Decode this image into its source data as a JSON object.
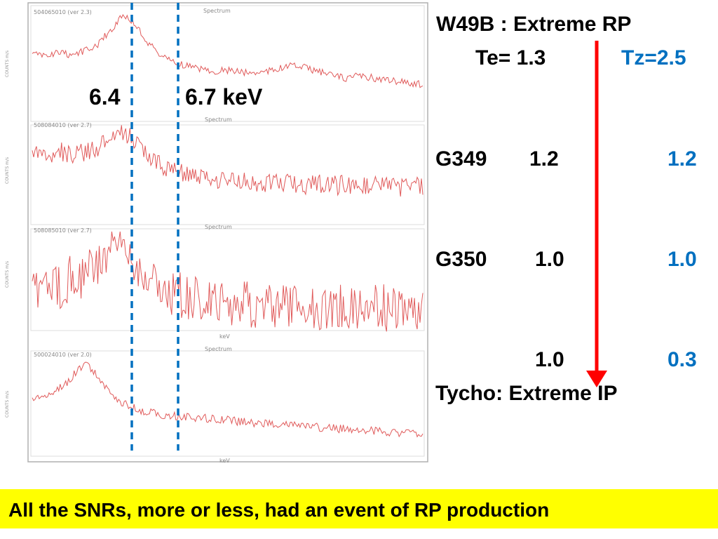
{
  "colors": {
    "spectrum": "#E05A5A",
    "marker_lines": "#0070C0",
    "arrow": "#FF0000",
    "tz_values": "#0070C0",
    "banner": "#FFFF00"
  },
  "chart_data": [
    {
      "type": "line",
      "panel_label": "504065010 (ver 2.3)",
      "title": "Spectrum",
      "xlabel": "keV",
      "ylabel": "COUNTS m/s",
      "series": [
        {
          "x": [
            6.0,
            6.1,
            6.2,
            6.3,
            6.4,
            6.5,
            6.6,
            6.7,
            6.8,
            6.9,
            7.0,
            7.1,
            7.2,
            7.3,
            7.4,
            7.5,
            7.6,
            7.7,
            7.8,
            7.9,
            8.0,
            8.1,
            8.2,
            8.3,
            8.4,
            8.5,
            8.6,
            8.7,
            8.8,
            8.9,
            9.0
          ],
          "y": [
            0.48,
            0.46,
            0.5,
            0.47,
            0.52,
            0.6,
            0.78,
            0.98,
            0.83,
            0.6,
            0.45,
            0.38,
            0.33,
            0.3,
            0.27,
            0.28,
            0.26,
            0.25,
            0.27,
            0.3,
            0.34,
            0.31,
            0.26,
            0.22,
            0.18,
            0.21,
            0.19,
            0.16,
            0.14,
            0.12,
            0.1
          ]
        }
      ]
    },
    {
      "type": "line",
      "panel_label": "508084010 (ver 2.7)",
      "title": "Spectrum",
      "xlabel": "keV",
      "ylabel": "COUNTS m/s",
      "series": [
        {
          "x": [
            6.0,
            6.1,
            6.2,
            6.3,
            6.4,
            6.5,
            6.6,
            6.7,
            6.8,
            6.9,
            7.0,
            7.1,
            7.2,
            7.3,
            7.4,
            7.5,
            7.6,
            7.7,
            7.8,
            7.9,
            8.0,
            8.1,
            8.2,
            8.3,
            8.4,
            8.5,
            8.6,
            8.7,
            8.8,
            8.9,
            9.0
          ],
          "y": [
            0.7,
            0.68,
            0.72,
            0.66,
            0.7,
            0.76,
            0.84,
            0.96,
            0.8,
            0.66,
            0.55,
            0.48,
            0.42,
            0.38,
            0.36,
            0.35,
            0.34,
            0.33,
            0.34,
            0.33,
            0.32,
            0.31,
            0.32,
            0.3,
            0.31,
            0.3,
            0.29,
            0.3,
            0.28,
            0.3,
            0.29
          ]
        }
      ]
    },
    {
      "type": "line",
      "panel_label": "508085010 (ver 2.7)",
      "title": "Spectrum",
      "xlabel": "keV",
      "ylabel": "COUNTS m/s",
      "series": [
        {
          "x": [
            6.0,
            6.1,
            6.2,
            6.3,
            6.4,
            6.5,
            6.6,
            6.7,
            6.8,
            6.9,
            7.0,
            7.1,
            7.2,
            7.3,
            7.4,
            7.5,
            7.6,
            7.7,
            7.8,
            7.9,
            8.0,
            8.1,
            8.2,
            8.3,
            8.4,
            8.5,
            8.6,
            8.7,
            8.8,
            8.9,
            9.0
          ],
          "y": [
            0.45,
            0.5,
            0.42,
            0.55,
            0.6,
            0.7,
            0.85,
            0.92,
            0.72,
            0.55,
            0.45,
            0.38,
            0.33,
            0.3,
            0.28,
            0.27,
            0.26,
            0.25,
            0.26,
            0.25,
            0.24,
            0.25,
            0.24,
            0.23,
            0.24,
            0.23,
            0.22,
            0.23,
            0.22,
            0.22,
            0.21
          ]
        }
      ]
    },
    {
      "type": "line",
      "panel_label": "500024010 (ver 2.0)",
      "title": "Spectrum",
      "xlabel": "keV",
      "ylabel": "COUNTS m/s",
      "series": [
        {
          "x": [
            6.0,
            6.1,
            6.2,
            6.3,
            6.4,
            6.5,
            6.6,
            6.7,
            6.8,
            6.9,
            7.0,
            7.1,
            7.2,
            7.3,
            7.4,
            7.5,
            7.6,
            7.7,
            7.8,
            7.9,
            8.0,
            8.1,
            8.2,
            8.3,
            8.4,
            8.5,
            8.6,
            8.7,
            8.8,
            8.9,
            9.0
          ],
          "y": [
            0.55,
            0.58,
            0.65,
            0.78,
            0.95,
            0.82,
            0.62,
            0.5,
            0.44,
            0.4,
            0.38,
            0.36,
            0.35,
            0.34,
            0.33,
            0.32,
            0.3,
            0.29,
            0.28,
            0.27,
            0.26,
            0.25,
            0.24,
            0.23,
            0.22,
            0.21,
            0.2,
            0.19,
            0.18,
            0.17,
            0.16
          ]
        }
      ]
    }
  ],
  "markers": {
    "fe_neutral_label": "6.4",
    "fe_he_label": "6.7 keV"
  },
  "right_panel": {
    "header": "W49B : Extreme RP",
    "te_label": "Te= 1.3",
    "tz_label": "Tz=2.5",
    "g349_name": "G349",
    "g349_te": "1.2",
    "g349_tz": "1.2",
    "g350_name": "G350",
    "g350_te": "1.0",
    "g350_tz": "1.0",
    "tycho_te": "1.0",
    "tycho_tz": "0.3",
    "tycho_label": "Tycho:  Extreme  IP"
  },
  "footer": {
    "text": "All the SNRs, more or less, had an event of RP production"
  }
}
